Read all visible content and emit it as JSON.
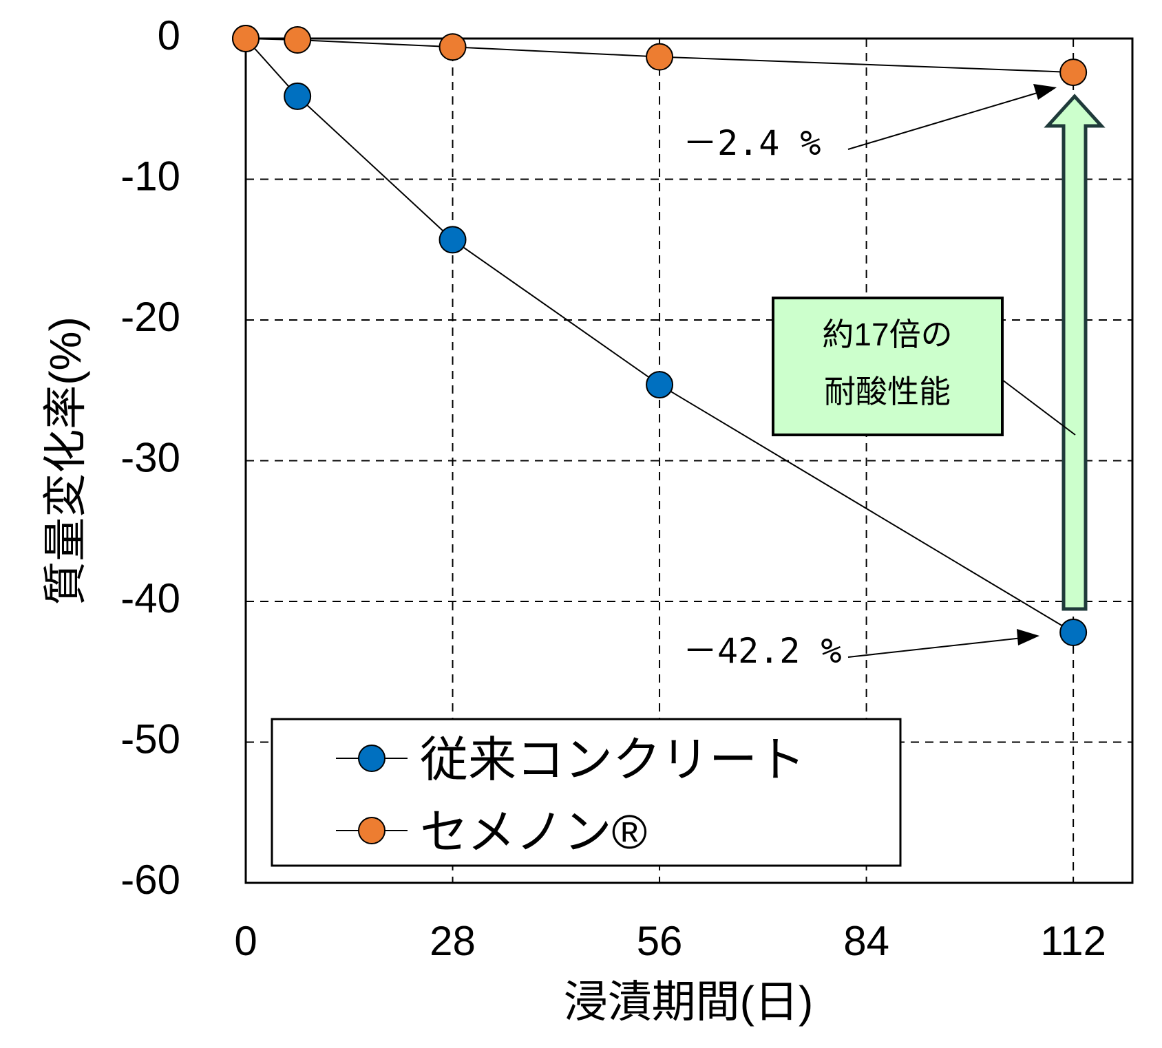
{
  "chart_data": {
    "type": "line",
    "x": [
      0,
      7,
      28,
      56,
      112
    ],
    "xticks": [
      "0",
      "28",
      "56",
      "84",
      "112"
    ],
    "xtick_values": [
      0,
      28,
      56,
      84,
      112
    ],
    "yticks": [
      "0",
      "-10",
      "-20",
      "-30",
      "-40",
      "-50",
      "-60"
    ],
    "ytick_values": [
      0,
      -10,
      -20,
      -30,
      -40,
      -50,
      -60
    ],
    "xlim": [
      0,
      120
    ],
    "ylim": [
      -60,
      0
    ],
    "xlabel": "浸漬期間(日)",
    "ylabel": "質量変化率(%)",
    "grid": "dashed",
    "legend_position": "bottom-left",
    "series": [
      {
        "name": "従来コンクリート",
        "color": "#0070c0",
        "values": [
          0,
          -4.1,
          -14.3,
          -24.6,
          -42.2
        ]
      },
      {
        "name": "セメノン®",
        "color": "#ed7d31",
        "values": [
          0,
          -0.1,
          -0.6,
          -1.3,
          -2.4
        ]
      }
    ],
    "annotations": {
      "cemenon_final": "－2.4 %",
      "conventional_final": "－42.2 %",
      "callout_line1": "約17倍の",
      "callout_line2": "耐酸性能"
    },
    "arrow_color": "#ccffcc",
    "callout_color": "#ccffcc"
  }
}
